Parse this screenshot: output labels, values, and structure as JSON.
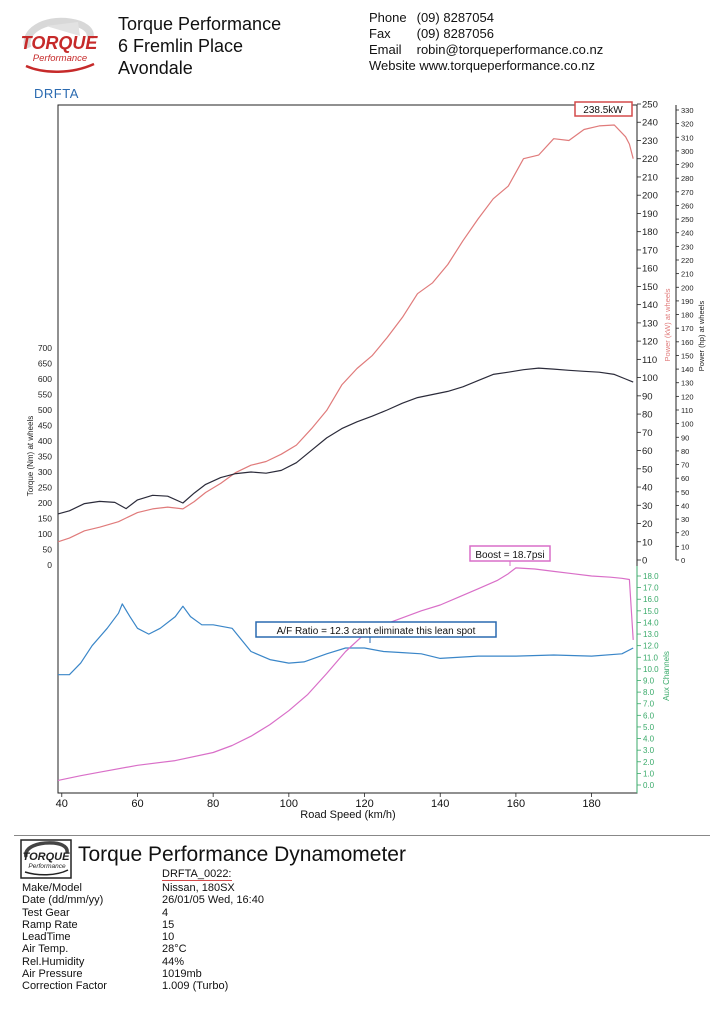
{
  "header": {
    "logo_text": "TORQUE",
    "logo_subtext": "Performance",
    "report_code": "DRFTA",
    "company_name": "Torque Performance",
    "address_line1": "6 Fremlin Place",
    "address_line2": "Avondale",
    "phone_label": "Phone",
    "phone": "(09) 8287054",
    "fax_label": "Fax",
    "fax": "(09) 8287056",
    "email_label": "Email",
    "email": "robin@torqueperformance.co.nz",
    "website_label": "Website",
    "website": "www.torqueperformance.co.nz"
  },
  "chart_data": {
    "type": "line",
    "xlabel": "Road Speed (km/h)",
    "x_ticks": [
      40,
      60,
      80,
      100,
      120,
      140,
      160,
      180
    ],
    "xlim": [
      39,
      192
    ],
    "torque_axis": {
      "label": "Torque (Nm) at wheels",
      "ylim": [
        0,
        700
      ],
      "ticks": [
        0,
        50,
        100,
        150,
        200,
        250,
        300,
        350,
        400,
        450,
        500,
        550,
        600,
        650,
        700
      ]
    },
    "power_kw_axis": {
      "label": "Power (kW) at wheels",
      "ylim": [
        0,
        250
      ],
      "ticks": [
        0,
        10,
        20,
        30,
        40,
        50,
        60,
        70,
        80,
        90,
        100,
        110,
        120,
        130,
        140,
        150,
        160,
        170,
        180,
        190,
        200,
        210,
        220,
        230,
        240,
        250
      ]
    },
    "power_hp_axis": {
      "label": "Power (hp) at wheels",
      "ylim": [
        0,
        330
      ],
      "ticks": [
        0,
        10,
        20,
        30,
        40,
        50,
        60,
        70,
        80,
        90,
        100,
        110,
        120,
        130,
        140,
        150,
        160,
        170,
        180,
        190,
        200,
        210,
        220,
        230,
        240,
        250,
        260,
        270,
        280,
        290,
        300,
        310,
        320,
        330
      ]
    },
    "aux_axis": {
      "label": "Aux Channels",
      "ylim": [
        0,
        18
      ],
      "ticks": [
        "0.0",
        "1.0",
        "2.0",
        "3.0",
        "4.0",
        "5.0",
        "6.0",
        "7.0",
        "8.0",
        "9.0",
        "10.0",
        "11.0",
        "12.0",
        "13.0",
        "14.0",
        "15.0",
        "16.0",
        "17.0",
        "18.0"
      ]
    },
    "series": [
      {
        "name": "Power (kW)",
        "color": "#e07b7b",
        "axis": "power_kw",
        "x": [
          39,
          42,
          46,
          50,
          55,
          57,
          60,
          64,
          68,
          72,
          75,
          78,
          82,
          86,
          90,
          94,
          98,
          102,
          106,
          110,
          114,
          118,
          122,
          126,
          130,
          134,
          138,
          142,
          146,
          150,
          154,
          158,
          162,
          166,
          170,
          174,
          178,
          182,
          186,
          189,
          190,
          191
        ],
        "y": [
          10,
          12,
          16,
          18,
          21,
          23,
          26,
          28,
          29,
          28,
          32,
          37,
          42,
          48,
          52,
          54,
          58,
          63,
          72,
          82,
          96,
          105,
          112,
          122,
          133,
          146,
          152,
          162,
          175,
          187,
          198,
          205,
          220,
          222,
          231,
          230,
          236,
          238,
          238.5,
          232,
          228,
          220
        ]
      },
      {
        "name": "Torque (Nm)",
        "color": "#2b2b3a",
        "axis": "torque",
        "x": [
          39,
          42,
          46,
          50,
          54,
          57,
          60,
          64,
          68,
          72,
          75,
          78,
          82,
          86,
          90,
          94,
          98,
          102,
          106,
          110,
          114,
          118,
          122,
          126,
          130,
          134,
          138,
          142,
          146,
          150,
          154,
          158,
          162,
          166,
          170,
          174,
          178,
          182,
          186,
          189,
          191
        ],
        "y": [
          165,
          175,
          198,
          205,
          202,
          182,
          210,
          225,
          222,
          200,
          232,
          260,
          282,
          295,
          300,
          296,
          305,
          330,
          370,
          410,
          440,
          462,
          480,
          500,
          522,
          540,
          550,
          560,
          575,
          595,
          615,
          622,
          630,
          635,
          632,
          628,
          625,
          622,
          615,
          600,
          590
        ]
      },
      {
        "name": "A/F Ratio",
        "color": "#3a86c8",
        "axis": "aux",
        "x": [
          39,
          42,
          45,
          48,
          52,
          55,
          56,
          58,
          60,
          63,
          66,
          70,
          72,
          74,
          77,
          80,
          85,
          90,
          95,
          100,
          104,
          110,
          115,
          120,
          125,
          130,
          135,
          140,
          150,
          160,
          170,
          180,
          188,
          191
        ],
        "y": [
          9.5,
          9.5,
          10.5,
          12.0,
          13.5,
          14.8,
          15.6,
          14.5,
          13.5,
          13.0,
          13.5,
          14.5,
          15.4,
          14.5,
          13.8,
          13.8,
          13.5,
          11.5,
          10.8,
          10.5,
          10.6,
          11.3,
          11.8,
          11.8,
          11.5,
          11.4,
          11.3,
          10.9,
          11.1,
          11.1,
          11.2,
          11.1,
          11.3,
          11.8
        ]
      },
      {
        "name": "Boost",
        "color": "#d96fc8",
        "axis": "aux",
        "x": [
          39,
          45,
          50,
          60,
          70,
          80,
          85,
          90,
          95,
          100,
          105,
          110,
          115,
          120,
          125,
          130,
          135,
          140,
          145,
          150,
          155,
          158,
          160,
          165,
          170,
          175,
          180,
          185,
          188,
          190,
          191
        ],
        "y": [
          0.4,
          0.8,
          1.1,
          1.7,
          2.1,
          2.8,
          3.4,
          4.2,
          5.2,
          6.4,
          7.8,
          9.6,
          11.5,
          13.0,
          13.8,
          14.4,
          15.0,
          15.5,
          16.2,
          16.9,
          17.6,
          18.2,
          18.7,
          18.6,
          18.4,
          18.2,
          18.0,
          17.9,
          17.8,
          17.7,
          12.5
        ]
      }
    ],
    "annotations": [
      {
        "text": "238.5kW",
        "series": "Power (kW)",
        "x": 186,
        "y": 238.5,
        "color": "#d44a4a"
      },
      {
        "text": "Boost = 18.7psi",
        "series": "Boost",
        "x": 160,
        "y": 18.7,
        "color": "#d96fc8"
      },
      {
        "text": "A/F Ratio = 12.3 cant eliminate this lean spot",
        "series": "A/F Ratio",
        "x": 120,
        "y": 12.0,
        "color": "#2a6ab0"
      }
    ]
  },
  "dyno_title": "Torque Performance Dynamometer",
  "run_id": "DRFTA_0022:",
  "specs": [
    {
      "label": "Make/Model",
      "value": "Nissan, 180SX"
    },
    {
      "label": "Date (dd/mm/yy)",
      "value": "26/01/05 Wed, 16:40"
    },
    {
      "label": "Test Gear",
      "value": "4"
    },
    {
      "label": "Ramp Rate",
      "value": "15"
    },
    {
      "label": "LeadTime",
      "value": "10"
    },
    {
      "label": "Air Temp.",
      "value": "28°C"
    },
    {
      "label": "Rel.Humidity",
      "value": "44%"
    },
    {
      "label": "Air Pressure",
      "value": "1019mb"
    },
    {
      "label": "Correction Factor",
      "value": "1.009 (Turbo)"
    }
  ]
}
